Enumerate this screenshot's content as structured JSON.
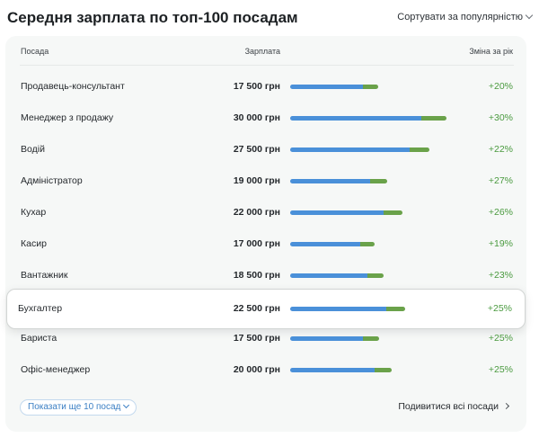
{
  "header": {
    "title": "Середня зарплата по топ-100 посадам",
    "sort_label": "Сортувати за популярністю",
    "sort_icon": "chevron-down-icon"
  },
  "table": {
    "columns": {
      "position": "Посада",
      "salary": "Зарплата",
      "change": "Зміна за рік"
    },
    "colors": {
      "salary_bar": "#4a90d9",
      "growth_bar": "#6aa24a",
      "growth_text": "#4a9a3f"
    },
    "rows": [
      {
        "position": "Продавець-консультант",
        "salary": "17 500 грн",
        "change": "+20%",
        "salary_value": 17500,
        "growth_pct": 20
      },
      {
        "position": "Менеджер з продажу",
        "salary": "30 000 грн",
        "change": "+30%",
        "salary_value": 30000,
        "growth_pct": 30
      },
      {
        "position": "Водій",
        "salary": "27 500 грн",
        "change": "+22%",
        "salary_value": 27500,
        "growth_pct": 22
      },
      {
        "position": "Адміністратор",
        "salary": "19 000 грн",
        "change": "+27%",
        "salary_value": 19000,
        "growth_pct": 27
      },
      {
        "position": "Кухар",
        "salary": "22 000 грн",
        "change": "+26%",
        "salary_value": 22000,
        "growth_pct": 26
      },
      {
        "position": "Касир",
        "salary": "17 000 грн",
        "change": "+19%",
        "salary_value": 17000,
        "growth_pct": 19
      },
      {
        "position": "Вантажник",
        "salary": "18 500 грн",
        "change": "+23%",
        "salary_value": 18500,
        "growth_pct": 23
      },
      {
        "position": "Бухгалтер",
        "salary": "22 500 грн",
        "change": "+25%",
        "salary_value": 22500,
        "growth_pct": 25,
        "highlighted": true
      },
      {
        "position": "Бариста",
        "salary": "17 500 грн",
        "change": "+25%",
        "salary_value": 17500,
        "growth_pct": 25
      },
      {
        "position": "Офіс-менеджер",
        "salary": "20 000 грн",
        "change": "+25%",
        "salary_value": 20000,
        "growth_pct": 25
      }
    ]
  },
  "footer": {
    "more_label": "Показати ще 10 посад",
    "all_label": "Подивитися всі посади"
  }
}
